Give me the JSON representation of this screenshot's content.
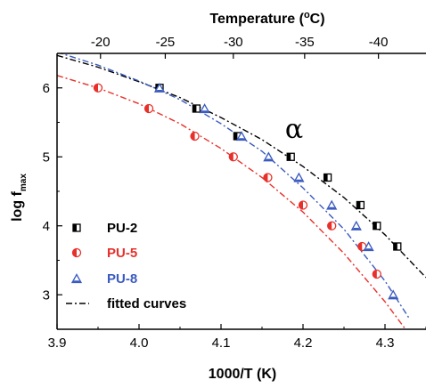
{
  "chart_data": {
    "type": "scatter",
    "title": "",
    "xlabel": "1000/T (K)",
    "ylabel_main": "log f",
    "ylabel_sub": "max",
    "top_axis_label_prefix": "Temperature (",
    "top_axis_label_degree": "o",
    "top_axis_label_suffix": "C)",
    "xlim": [
      3.9,
      4.35
    ],
    "ylim": [
      2.5,
      6.5
    ],
    "x_ticks": [
      3.9,
      4.0,
      4.1,
      4.2,
      4.3
    ],
    "x_tick_labels": [
      "3.9",
      "4.0",
      "4.1",
      "4.2",
      "4.3"
    ],
    "y_ticks": [
      3,
      4,
      5,
      6
    ],
    "y_tick_labels": [
      "3",
      "4",
      "5",
      "6"
    ],
    "top_ticks": [
      {
        "label": "-20",
        "x": 3.953
      },
      {
        "label": "-25",
        "x": 4.032
      },
      {
        "label": "-30",
        "x": 4.115
      },
      {
        "label": "-35",
        "x": 4.202
      },
      {
        "label": "-40",
        "x": 4.292
      }
    ],
    "annotation": "α",
    "grid": false,
    "legend_position": "lower-left",
    "series": [
      {
        "name": "PU-2",
        "color": "#000000",
        "marker": "square-half",
        "x": [
          4.025,
          4.07,
          4.12,
          4.185,
          4.23,
          4.27,
          4.29,
          4.315
        ],
        "y": [
          6.0,
          5.7,
          5.3,
          5.0,
          4.7,
          4.3,
          4.0,
          3.7
        ]
      },
      {
        "name": "PU-5",
        "color": "#e8302a",
        "marker": "circle-half",
        "x": [
          3.95,
          4.012,
          4.068,
          4.115,
          4.157,
          4.2,
          4.235,
          4.272,
          4.29
        ],
        "y": [
          6.0,
          5.7,
          5.3,
          5.0,
          4.7,
          4.3,
          4.0,
          3.7,
          3.3
        ]
      },
      {
        "name": "PU-8",
        "color": "#3a5bbf",
        "marker": "triangle-half",
        "x": [
          4.025,
          4.08,
          4.125,
          4.158,
          4.195,
          4.235,
          4.265,
          4.28,
          4.31
        ],
        "y": [
          6.0,
          5.7,
          5.3,
          5.0,
          4.7,
          4.3,
          4.0,
          3.7,
          3.0
        ]
      }
    ],
    "fitted_curves_label": "fitted curves",
    "fitted_curves": [
      {
        "series": "PU-2",
        "color": "#000000",
        "x": [
          3.9,
          3.95,
          4.0,
          4.05,
          4.1,
          4.15,
          4.2,
          4.25,
          4.3,
          4.35
        ],
        "y": [
          6.47,
          6.3,
          6.09,
          5.86,
          5.57,
          5.25,
          4.86,
          4.41,
          3.87,
          3.25
        ]
      },
      {
        "series": "PU-5",
        "color": "#e8302a",
        "x": [
          3.9,
          3.95,
          4.0,
          4.05,
          4.1,
          4.15,
          4.2,
          4.25,
          4.3,
          4.35
        ],
        "y": [
          6.18,
          6.0,
          5.77,
          5.48,
          5.12,
          4.7,
          4.2,
          3.6,
          2.9,
          2.1
        ]
      },
      {
        "series": "PU-8",
        "color": "#3a5bbf",
        "x": [
          3.9,
          3.95,
          4.0,
          4.05,
          4.1,
          4.15,
          4.2,
          4.25,
          4.3,
          4.33
        ],
        "y": [
          6.52,
          6.33,
          6.1,
          5.83,
          5.48,
          5.08,
          4.55,
          3.95,
          3.2,
          2.65
        ]
      }
    ]
  }
}
